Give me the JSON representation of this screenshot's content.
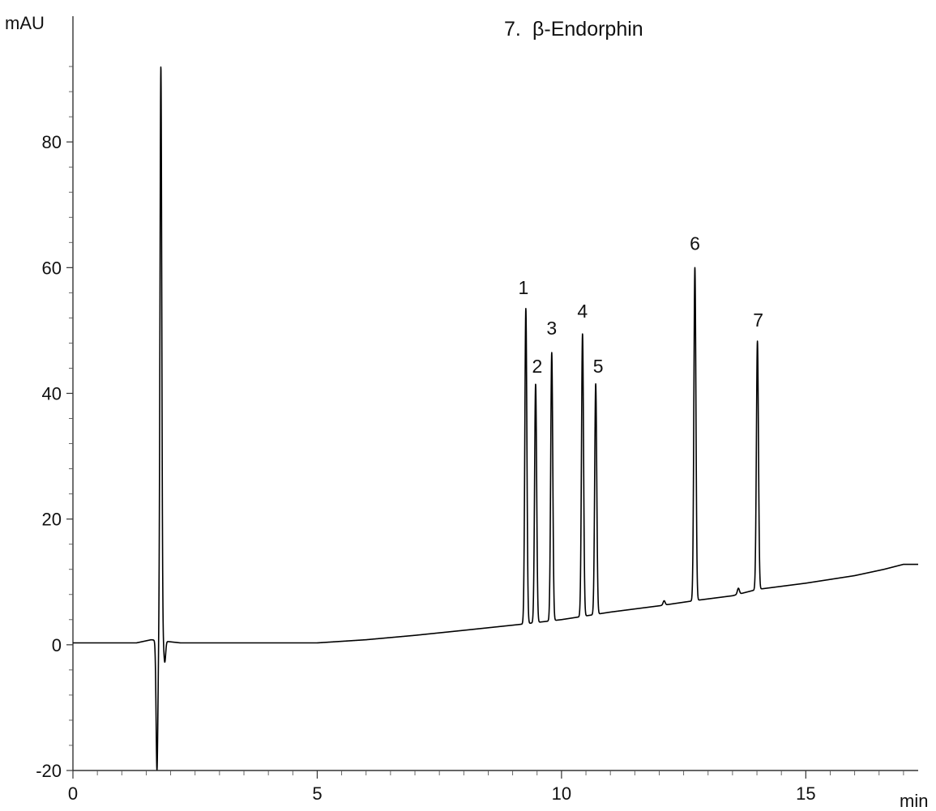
{
  "chart_data": {
    "type": "line",
    "title": "",
    "xlabel": "min",
    "ylabel": "mAU",
    "xlim": [
      0,
      17.3
    ],
    "ylim": [
      -20,
      100
    ],
    "x_ticks": [
      0,
      5,
      10,
      15
    ],
    "y_ticks": [
      -20,
      0,
      20,
      40,
      60,
      80
    ],
    "grid": false,
    "legend": {
      "position": "top-center",
      "entries": [
        {
          "number": "7.",
          "name": "β-Endorphin"
        }
      ]
    },
    "baseline": [
      [
        0,
        0.3
      ],
      [
        1.3,
        0.3
      ],
      [
        1.6,
        0.8
      ],
      [
        2.2,
        0.3
      ],
      [
        5.0,
        0.3
      ],
      [
        6.0,
        0.8
      ],
      [
        7.0,
        1.5
      ],
      [
        8.0,
        2.3
      ],
      [
        9.1,
        3.2
      ],
      [
        10.0,
        4.0
      ],
      [
        11.0,
        5.2
      ],
      [
        12.0,
        6.2
      ],
      [
        12.7,
        7.0
      ],
      [
        13.5,
        7.8
      ],
      [
        14.0,
        8.8
      ],
      [
        15.0,
        9.8
      ],
      [
        16.0,
        11.0
      ],
      [
        16.6,
        12.0
      ],
      [
        17.0,
        12.8
      ],
      [
        17.3,
        12.8
      ]
    ],
    "system_peak": {
      "time": 1.8,
      "max": 92,
      "min": -20,
      "dip_after": -2.7
    },
    "peaks": [
      {
        "label": "1",
        "time": 9.27,
        "height": 53.5
      },
      {
        "label": "2",
        "time": 9.47,
        "height": 41.5
      },
      {
        "label": "3",
        "time": 9.8,
        "height": 46.5
      },
      {
        "label": "4",
        "time": 10.43,
        "height": 49.5
      },
      {
        "label": "5",
        "time": 10.7,
        "height": 41.5
      },
      {
        "label": "6",
        "time": 12.73,
        "height": 60.0
      },
      {
        "label": "7",
        "time": 14.01,
        "height": 48.3
      }
    ],
    "minor_peaks": [
      {
        "time": 12.1,
        "height": 7.0
      },
      {
        "time": 13.62,
        "height": 9.0
      }
    ]
  }
}
